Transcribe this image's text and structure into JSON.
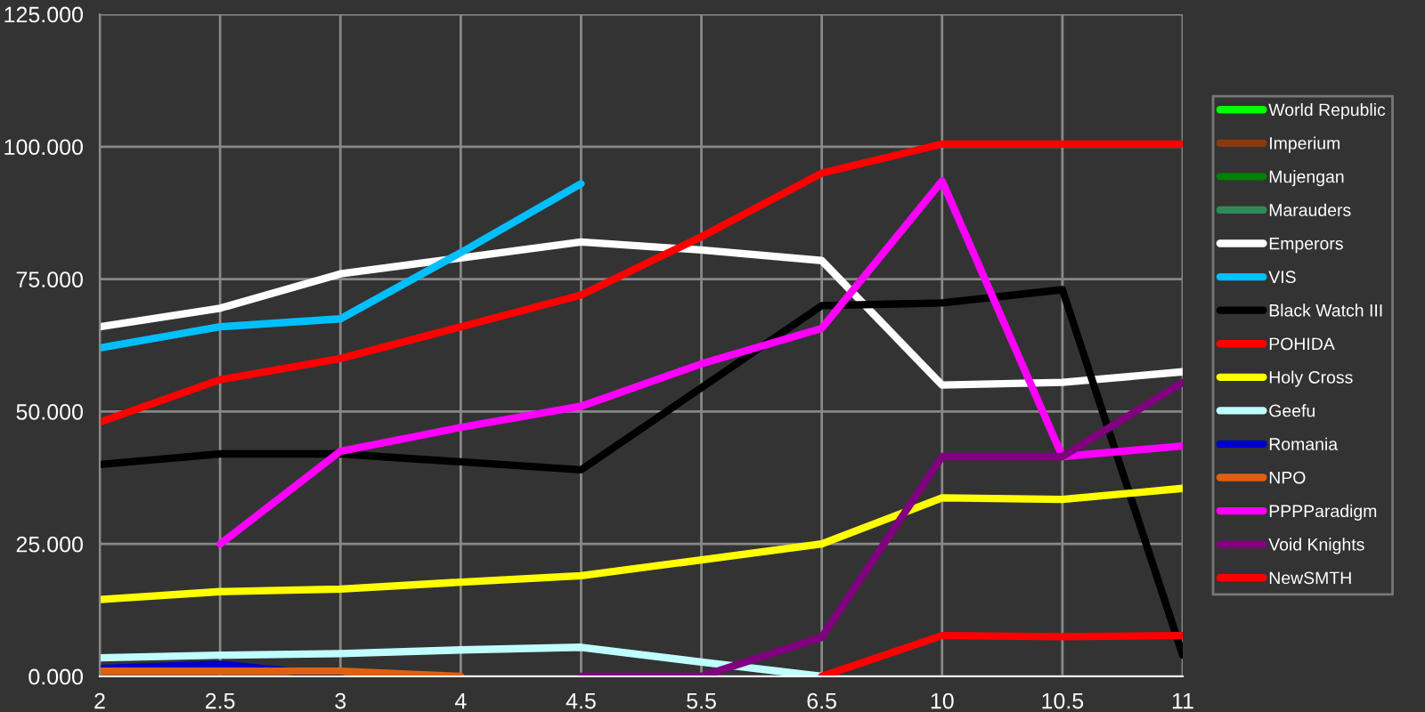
{
  "chart_data": {
    "type": "line",
    "categories": [
      "2",
      "2.5",
      "3",
      "4",
      "4.5",
      "5.5",
      "6.5",
      "10",
      "10.5",
      "11"
    ],
    "ylim": [
      0,
      125
    ],
    "yticks": [
      {
        "value": 0,
        "label": "0.000"
      },
      {
        "value": 25,
        "label": "25.000"
      },
      {
        "value": 50,
        "label": "50.000"
      },
      {
        "value": 75,
        "label": "75.000"
      },
      {
        "value": 100,
        "label": "100.000"
      },
      {
        "value": 125,
        "label": "125.000"
      }
    ],
    "grid": true,
    "legend": "right",
    "marker": "none",
    "line_style": "solid",
    "series": [
      {
        "name": "World Republic",
        "color": "#00ff00",
        "values": [
          null,
          null,
          null,
          null,
          null,
          null,
          null,
          null,
          null,
          null
        ]
      },
      {
        "name": "Imperium",
        "color": "#8b3a0f",
        "values": [
          null,
          null,
          null,
          null,
          null,
          null,
          null,
          null,
          null,
          null
        ]
      },
      {
        "name": "Mujengan",
        "color": "#007f00",
        "values": [
          null,
          null,
          null,
          null,
          null,
          null,
          null,
          null,
          null,
          null
        ]
      },
      {
        "name": "Marauders",
        "color": "#2e8b57",
        "values": [
          null,
          null,
          null,
          null,
          null,
          null,
          null,
          null,
          null,
          null
        ]
      },
      {
        "name": "Emperors",
        "color": "#ffffff",
        "values": [
          66,
          69.5,
          76,
          79,
          82,
          80.5,
          78.5,
          55,
          55.5,
          57.5
        ]
      },
      {
        "name": "VIS",
        "color": "#00bfff",
        "values": [
          62,
          66,
          67.5,
          80,
          93,
          null,
          null,
          null,
          null,
          null
        ]
      },
      {
        "name": "Black Watch III",
        "color": "#000000",
        "values": [
          40,
          42,
          42,
          40.5,
          39,
          54.5,
          70,
          70.5,
          73,
          4
        ]
      },
      {
        "name": "POHIDA",
        "color": "#ff0000",
        "values": [
          48,
          56,
          60,
          66,
          72,
          83,
          95,
          100.5,
          100.5,
          100.5
        ]
      },
      {
        "name": "Holy Cross",
        "color": "#ffff00",
        "values": [
          14.5,
          16,
          16.5,
          17.8,
          19,
          22,
          25,
          33.7,
          33.4,
          35.5
        ]
      },
      {
        "name": "Geefu",
        "color": "#c0ffff",
        "values": [
          3.5,
          4,
          4.3,
          5,
          5.5,
          2.7,
          0,
          null,
          null,
          null
        ]
      },
      {
        "name": "Romania",
        "color": "#0000cc",
        "values": [
          1.5,
          2.3,
          0,
          null,
          null,
          null,
          null,
          null,
          null,
          null
        ]
      },
      {
        "name": "NPO",
        "color": "#e06010",
        "values": [
          1,
          1,
          1,
          0,
          null,
          null,
          null,
          null,
          null,
          null
        ]
      },
      {
        "name": "PPPParadigm",
        "color": "#ff00ff",
        "values": [
          null,
          25,
          42.5,
          47,
          51,
          59,
          65.7,
          93.5,
          41.5,
          43.5
        ]
      },
      {
        "name": "Void Knights",
        "color": "#800080",
        "values": [
          null,
          null,
          null,
          null,
          0,
          0,
          7.4,
          41.5,
          41.5,
          55.5
        ]
      },
      {
        "name": "NewSMTH",
        "color": "#ff0000",
        "values": [
          null,
          null,
          null,
          null,
          null,
          null,
          0,
          7.7,
          7.5,
          7.7
        ]
      }
    ]
  }
}
